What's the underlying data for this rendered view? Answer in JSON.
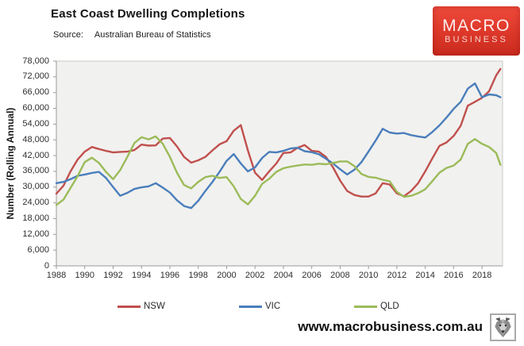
{
  "header": {
    "title": "East Coast Dwelling Completions",
    "source_label": "Source:",
    "source_text": "Australian Bureau of Statistics"
  },
  "logo": {
    "line1": "MACRO",
    "line2": "BUSINESS",
    "bg_top": "#ee4b3c",
    "bg_bottom": "#c92b1e"
  },
  "footer": {
    "url": "www.macrobusiness.com.au"
  },
  "chart_data": {
    "type": "line",
    "title": "East Coast Dwelling Completions",
    "ylabel": "Number (Rolling Annual)",
    "xlabel": "",
    "ylim": [
      0,
      78000
    ],
    "y_ticks": [
      0,
      6000,
      12000,
      18000,
      24000,
      30000,
      36000,
      42000,
      48000,
      54000,
      60000,
      66000,
      72000,
      78000
    ],
    "x_ticks": [
      1988,
      1990,
      1992,
      1994,
      1996,
      1998,
      2000,
      2002,
      2004,
      2006,
      2008,
      2010,
      2012,
      2014,
      2016,
      2018
    ],
    "xlim": [
      1988,
      2019.8
    ],
    "grid": false,
    "plot_bg": "#f1f1ef",
    "legend_position": "bottom",
    "x": [
      1988,
      1988.5,
      1989,
      1989.5,
      1990,
      1990.5,
      1991,
      1991.5,
      1992,
      1992.5,
      1993,
      1993.5,
      1994,
      1994.5,
      1995,
      1995.5,
      1996,
      1996.5,
      1997,
      1997.5,
      1998,
      1998.5,
      1999,
      1999.5,
      2000,
      2000.5,
      2001,
      2001.5,
      2002,
      2002.5,
      2003,
      2003.5,
      2004,
      2004.5,
      2005,
      2005.5,
      2006,
      2006.5,
      2007,
      2007.5,
      2008,
      2008.5,
      2009,
      2009.5,
      2010,
      2010.5,
      2011,
      2011.5,
      2012,
      2012.5,
      2013,
      2013.5,
      2014,
      2014.5,
      2015,
      2015.5,
      2016,
      2016.5,
      2017,
      2017.5,
      2018,
      2018.5,
      2019,
      2019.3
    ],
    "series": [
      {
        "name": "NSW",
        "color": "#c0504d",
        "values": [
          27500,
          30500,
          36000,
          40500,
          43500,
          45300,
          44500,
          43800,
          43200,
          43400,
          43500,
          44100,
          46200,
          45800,
          45900,
          48500,
          48700,
          45500,
          41500,
          39300,
          40200,
          41500,
          44000,
          46300,
          47500,
          51500,
          53600,
          44000,
          35500,
          32700,
          36000,
          39000,
          43000,
          43200,
          45000,
          46000,
          43800,
          43500,
          41500,
          37500,
          32500,
          28500,
          27000,
          26400,
          26400,
          27600,
          31500,
          31000,
          27600,
          26500,
          28500,
          31500,
          36000,
          41000,
          45700,
          47000,
          49500,
          53400,
          61000,
          62500,
          64000,
          66500,
          72600,
          75000
        ]
      },
      {
        "name": "VIC",
        "color": "#4a7ebb",
        "values": [
          31500,
          32000,
          33000,
          34300,
          34800,
          35400,
          35800,
          33500,
          30000,
          26700,
          27800,
          29300,
          29900,
          30300,
          31500,
          29800,
          27900,
          25000,
          22800,
          22000,
          24800,
          28500,
          32000,
          35800,
          40000,
          42600,
          39000,
          36000,
          37500,
          41100,
          43400,
          43200,
          43800,
          44700,
          45000,
          43700,
          43300,
          42500,
          40800,
          39000,
          36800,
          34800,
          36600,
          39500,
          43500,
          47700,
          52200,
          50800,
          50400,
          50600,
          49800,
          49300,
          48900,
          51000,
          53500,
          56500,
          59800,
          62500,
          67500,
          69500,
          64200,
          65300,
          65000,
          64200
        ]
      },
      {
        "name": "QLD",
        "color": "#9bbb59",
        "values": [
          23200,
          25200,
          29700,
          34200,
          39500,
          41200,
          39200,
          35800,
          33000,
          36500,
          41500,
          46800,
          49000,
          48200,
          49300,
          46500,
          41500,
          35500,
          30800,
          29500,
          32000,
          33800,
          34300,
          33500,
          33800,
          30300,
          25500,
          23400,
          26700,
          31200,
          33200,
          35800,
          37200,
          37800,
          38200,
          38600,
          38500,
          38900,
          38700,
          39200,
          39800,
          39800,
          38000,
          35000,
          33900,
          33600,
          32800,
          32200,
          28200,
          26300,
          26700,
          27700,
          29200,
          32300,
          35500,
          37300,
          38200,
          40500,
          46500,
          48300,
          46500,
          45300,
          43000,
          38500
        ]
      }
    ]
  }
}
